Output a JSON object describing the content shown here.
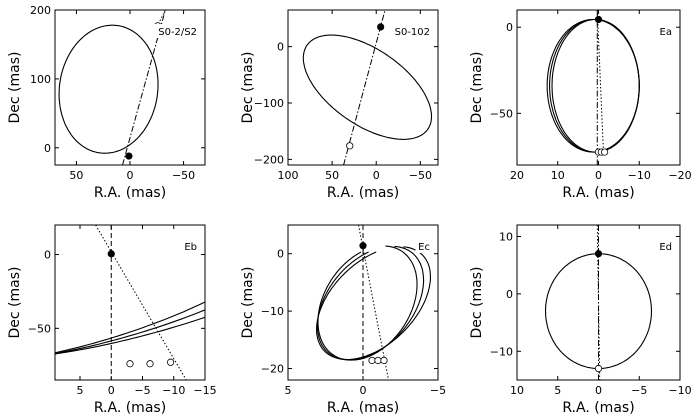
{
  "figure": {
    "description": "Six panels of stellar orbits on the sky (Dec vs R.A.)"
  },
  "chart_data": [
    {
      "type": "line",
      "title": "S0-2/S2",
      "xlabel": "R.A. (mas)",
      "ylabel": "Dec (mas)",
      "xlim": [
        70,
        -70
      ],
      "ylim": [
        -25,
        200
      ],
      "xticks": [
        50,
        0,
        -50
      ],
      "yticks": [
        0,
        100,
        200
      ],
      "orbits": [
        {
          "cx": 20,
          "cy": 85,
          "a": 46,
          "b": 93,
          "rot": 0.05,
          "rev": 1
        }
      ],
      "lines": [
        {
          "style": "dashdot",
          "points": [
            [
              7,
              -25
            ],
            [
              -33,
              200
            ]
          ]
        },
        {
          "style": "dotted",
          "points": [
            [
              -25,
              175
            ],
            [
              -33,
              200
            ]
          ]
        }
      ],
      "markers": [
        {
          "x": 1,
          "y": -12,
          "filled": true
        },
        {
          "x": -26,
          "y": 177,
          "filled": false
        }
      ]
    },
    {
      "type": "line",
      "title": "S0-102",
      "xlabel": "R.A. (mas)",
      "ylabel": "Dec (mas)",
      "xlim": [
        100,
        -70
      ],
      "ylim": [
        -210,
        65
      ],
      "xticks": [
        100,
        50,
        0,
        -50
      ],
      "yticks": [
        0,
        -100,
        -200
      ],
      "orbits": [
        {
          "cx": 10,
          "cy": -72,
          "a": 53,
          "b": 105,
          "rot": -0.58,
          "rev": 1
        }
      ],
      "lines": [
        {
          "style": "dashdot",
          "points": [
            [
              37,
              -210
            ],
            [
              -10,
              65
            ]
          ]
        }
      ],
      "markers": [
        {
          "x": -5,
          "y": 35,
          "filled": true
        },
        {
          "x": 30,
          "y": -176,
          "filled": false
        }
      ]
    },
    {
      "type": "line",
      "title": "Ea",
      "xlabel": "R.A. (mas)",
      "ylabel": "Dec (mas)",
      "xlim": [
        20,
        -20
      ],
      "ylim": [
        -80,
        10
      ],
      "xticks": [
        20,
        10,
        0,
        -10,
        -20
      ],
      "yticks": [
        0,
        -50
      ],
      "orbits": [
        {
          "cx": 1.3,
          "cy": -34,
          "a": 11.3,
          "b": 38.5,
          "rot": 0,
          "rev": 1
        },
        {
          "cx": 1.0,
          "cy": -34,
          "a": 11.0,
          "b": 38.5,
          "rot": 0,
          "rev": 1
        },
        {
          "cx": 0.7,
          "cy": -34,
          "a": 10.7,
          "b": 38.5,
          "rot": 0,
          "rev": 1
        }
      ],
      "lines": [
        {
          "style": "dashdot",
          "points": [
            [
              0.3,
              10
            ],
            [
              0.3,
              -80
            ]
          ]
        },
        {
          "style": "dotted",
          "points": [
            [
              0.3,
              10
            ],
            [
              -1.2,
              -72
            ]
          ]
        }
      ],
      "markers": [
        {
          "x": 0,
          "y": 4.5,
          "filled": true
        },
        {
          "x": 0,
          "y": -72.5,
          "filled": false
        },
        {
          "x": -0.7,
          "y": -72.5,
          "filled": false
        },
        {
          "x": -1.5,
          "y": -72.5,
          "filled": false
        }
      ]
    },
    {
      "type": "line",
      "title": "Eb",
      "xlabel": "R.A. (mas)",
      "ylabel": "Dec (mas)",
      "xlim": [
        9,
        -15
      ],
      "ylim": [
        -85,
        20
      ],
      "xticks": [
        5,
        0,
        -5,
        -10,
        -15
      ],
      "yticks": [
        0,
        -50
      ],
      "orbits": [
        {
          "cx": -0.5,
          "cy": -37,
          "a": 10.5,
          "b": 39.5,
          "rot": 0.53,
          "rev": 0.71
        },
        {
          "cx": -2.2,
          "cy": -37,
          "a": 11.2,
          "b": 39.5,
          "rot": 0.57,
          "rev": 0.71
        },
        {
          "cx": -4.2,
          "cy": -37,
          "a": 12.0,
          "b": 39.5,
          "rot": 0.62,
          "rev": 0.71
        }
      ],
      "lines": [
        {
          "style": "dashed",
          "points": [
            [
              0,
              20
            ],
            [
              0,
              -85
            ]
          ]
        },
        {
          "style": "dotted",
          "points": [
            [
              2.5,
              20
            ],
            [
              -12,
              -85
            ]
          ]
        }
      ],
      "markers": [
        {
          "x": 0,
          "y": 0.5,
          "filled": true
        },
        {
          "x": -3,
          "y": -74,
          "filled": false
        },
        {
          "x": -6.2,
          "y": -74,
          "filled": false
        },
        {
          "x": -9.5,
          "y": -73,
          "filled": false
        }
      ]
    },
    {
      "type": "line",
      "title": "Ec",
      "xlabel": "R.A. (mas)",
      "ylabel": "Dec (mas)",
      "xlim": [
        5,
        -5
      ],
      "ylim": [
        -22,
        5
      ],
      "xticks": [
        5,
        0,
        -5
      ],
      "yticks": [
        0,
        -10,
        -20
      ],
      "orbits": [
        {
          "cx": -0.3,
          "cy": -8.6,
          "a": 3.1,
          "b": 10.0,
          "rot": 0.12,
          "rev": 0.92
        },
        {
          "cx": -0.5,
          "cy": -8.6,
          "a": 3.2,
          "b": 10.0,
          "rot": 0.16,
          "rev": 0.92
        },
        {
          "cx": -0.7,
          "cy": -8.6,
          "a": 3.3,
          "b": 10.0,
          "rot": 0.2,
          "rev": 0.92
        }
      ],
      "lines": [
        {
          "style": "dashed",
          "points": [
            [
              0,
              5
            ],
            [
              0,
              -22
            ]
          ]
        },
        {
          "style": "dotted",
          "points": [
            [
              0.3,
              5
            ],
            [
              -1.7,
              -22
            ]
          ]
        }
      ],
      "markers": [
        {
          "x": 0,
          "y": 1.4,
          "filled": true
        },
        {
          "x": -0.6,
          "y": -18.6,
          "filled": false
        },
        {
          "x": -1.0,
          "y": -18.6,
          "filled": false
        },
        {
          "x": -1.4,
          "y": -18.6,
          "filled": false
        }
      ]
    },
    {
      "type": "line",
      "title": "Ed",
      "xlabel": "R.A. (mas)",
      "ylabel": "Dec (mas)",
      "xlim": [
        10,
        -10
      ],
      "ylim": [
        -15,
        12
      ],
      "xticks": [
        10,
        5,
        0,
        -5,
        -10
      ],
      "yticks": [
        10,
        0,
        -10
      ],
      "orbits": [
        {
          "cx": 0,
          "cy": -3,
          "a": 6.5,
          "b": 10,
          "rot": 0,
          "rev": 1
        }
      ],
      "lines": [
        {
          "style": "dashdot",
          "points": [
            [
              0,
              12
            ],
            [
              0,
              -15
            ]
          ]
        },
        {
          "style": "dotted",
          "points": [
            [
              0.15,
              12
            ],
            [
              -0.15,
              -15
            ]
          ]
        }
      ],
      "markers": [
        {
          "x": 0,
          "y": 7,
          "filled": true
        },
        {
          "x": 0,
          "y": -13,
          "filled": false
        }
      ]
    }
  ]
}
